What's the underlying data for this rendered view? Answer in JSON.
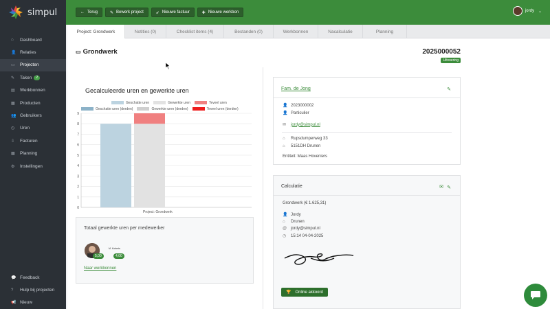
{
  "app": {
    "name": "simpul"
  },
  "sidebar": {
    "items": [
      {
        "label": "Dashboard",
        "icon": "home-icon",
        "glyph": "⌂"
      },
      {
        "label": "Relaties",
        "icon": "users-icon",
        "glyph": "👤"
      },
      {
        "label": "Projecten",
        "icon": "inbox-icon",
        "glyph": "▭",
        "active": true
      },
      {
        "label": "Taken",
        "icon": "pin-icon",
        "glyph": "✎",
        "badge": "2"
      },
      {
        "label": "Werkbonnen",
        "icon": "clipboard-icon",
        "glyph": "▤"
      },
      {
        "label": "Producten",
        "icon": "box-icon",
        "glyph": "▦"
      },
      {
        "label": "Gebruikers",
        "icon": "user-group-icon",
        "glyph": "👥"
      },
      {
        "label": "Uren",
        "icon": "clock-icon",
        "glyph": "◷"
      },
      {
        "label": "Facturen",
        "icon": "invoice-icon",
        "glyph": "⇩"
      },
      {
        "label": "Planning",
        "icon": "calendar-icon",
        "glyph": "▦"
      },
      {
        "label": "Instellingen",
        "icon": "gear-icon",
        "glyph": "⚙"
      }
    ],
    "bottom": [
      {
        "label": "Feedback",
        "icon": "comment-icon",
        "glyph": "💬"
      },
      {
        "label": "Hulp bij projecten",
        "icon": "help-icon",
        "glyph": "?"
      },
      {
        "label": "Nieuw",
        "icon": "megaphone-icon",
        "glyph": "📢"
      }
    ]
  },
  "toolbar": {
    "back_label": "Terug",
    "edit_label": "Bewerk project",
    "invoice_label": "Nieuwe factuur",
    "workorder_label": "Nieuwe werkbon"
  },
  "user": {
    "name": "jordy"
  },
  "tabs": [
    "Project: Grondwerk",
    "Notities (0)",
    "Checklist items (4)",
    "Bestanden (0)",
    "Werkbonnen",
    "Nacalculatie",
    "Planning"
  ],
  "project": {
    "title": "Grondwerk",
    "number": "2025000052",
    "status": "Uitvoering"
  },
  "chart_data": {
    "type": "bar",
    "title": "Gecalculeerde uren en gewerkte uren",
    "legend": [
      {
        "name": "Geschatte uren",
        "color": "#bcd3e0"
      },
      {
        "name": "Gewerkte uren",
        "color": "#e2e2e2"
      },
      {
        "name": "Teveel uren",
        "color": "#f08080"
      },
      {
        "name": "Geschatte uren (derden)",
        "color": "#8cb2c8"
      },
      {
        "name": "Gewerkte uren (derden)",
        "color": "#cfcfcf"
      },
      {
        "name": "Teveel uren (derden)",
        "color": "#ee1c1c"
      }
    ],
    "categories": [
      "Project: Grondwerk"
    ],
    "series": [
      {
        "name": "Geschatte uren",
        "values": [
          8
        ]
      },
      {
        "name": "Gewerkte uren",
        "values": [
          8
        ]
      },
      {
        "name": "Teveel uren",
        "values": [
          1
        ]
      }
    ],
    "ylim": [
      0,
      9
    ],
    "yticks": [
      0,
      1,
      2,
      3,
      4,
      5,
      6,
      7,
      8,
      9
    ]
  },
  "employees": {
    "title": "Totaal gewerkte uren per medewerker",
    "name": "M. Koberts",
    "estimated": "5,00",
    "worked": "4,00",
    "link": "Naar werkbonnen"
  },
  "client": {
    "name": "Fam. de Jong",
    "number": "2023000002",
    "type": "Particulier",
    "email": "jordy@simpul.nl",
    "street": "Rupsdumperweg 33",
    "city": "5151DH Drunen",
    "entity": "Entiteit: Maas Hoveniers"
  },
  "calculation": {
    "heading": "Calculatie",
    "summary": "Grondwerk (€ 1.625,31)",
    "person": "Jordy",
    "place": "Drunen",
    "email": "jordy@simpul.nl",
    "datetime": "15:14 04-04-2025",
    "button": "Online akkoord"
  },
  "colors": {
    "brand_green": "#3c8c3b",
    "sidebar": "#2b3036"
  }
}
